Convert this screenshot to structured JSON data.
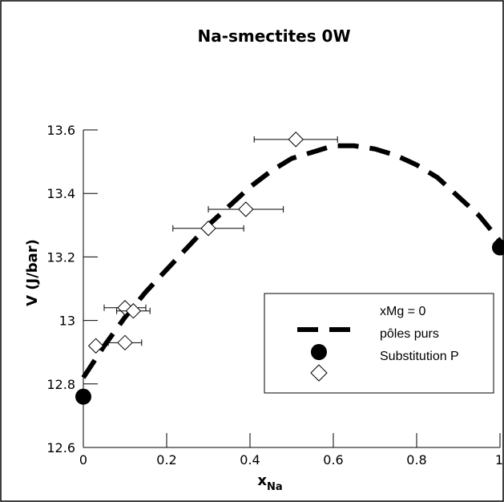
{
  "chart_data": {
    "type": "scatter",
    "title": "Na-smectites 0W",
    "xlabel_main": "x",
    "xlabel_sub": "Na",
    "ylabel": "V (J/bar)",
    "xlim": [
      0,
      1
    ],
    "ylim": [
      12.6,
      13.6
    ],
    "x_ticks": [
      0,
      0.2,
      0.4,
      0.6,
      0.8,
      1
    ],
    "x_tick_labels": [
      "0",
      "0.2",
      "0.4",
      "0.6",
      "0.8",
      "1"
    ],
    "y_ticks": [
      12.6,
      12.8,
      13.0,
      13.2,
      13.4,
      13.6
    ],
    "y_tick_labels": [
      "12.6",
      "12.8",
      "13",
      "13.2",
      "13.4",
      "13.6"
    ],
    "legend": {
      "title": "xMg = 0",
      "entries": [
        "pôles purs",
        "Substitution P"
      ]
    },
    "fit_line": {
      "x": [
        0.0,
        0.05,
        0.1,
        0.15,
        0.2,
        0.25,
        0.3,
        0.35,
        0.4,
        0.45,
        0.5,
        0.55,
        0.6,
        0.65,
        0.7,
        0.75,
        0.8,
        0.85,
        0.9,
        0.95,
        1.0
      ],
      "y": [
        12.82,
        12.92,
        13.01,
        13.09,
        13.16,
        13.23,
        13.3,
        13.36,
        13.42,
        13.47,
        13.51,
        13.53,
        13.55,
        13.55,
        13.54,
        13.52,
        13.49,
        13.45,
        13.39,
        13.33,
        13.25
      ]
    },
    "series": [
      {
        "marker": "filled-circle",
        "x": [
          0,
          1
        ],
        "y": [
          12.76,
          13.23
        ]
      },
      {
        "marker": "open-diamond",
        "x": [
          0.03,
          0.1,
          0.12,
          0.1,
          0.3,
          0.39,
          0.51
        ],
        "y": [
          12.92,
          13.04,
          13.03,
          12.93,
          13.29,
          13.35,
          13.57
        ],
        "xerr": [
          0.0,
          0.05,
          0.04,
          0.04,
          0.085,
          0.09,
          0.1
        ]
      }
    ]
  }
}
